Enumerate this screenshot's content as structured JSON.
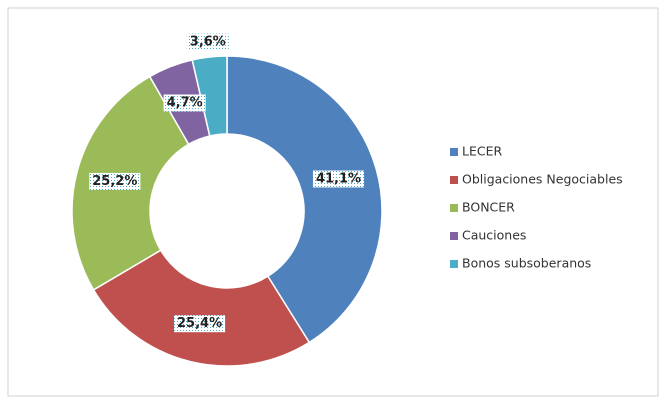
{
  "chart_data": {
    "type": "donut",
    "categories": [
      "LECER",
      "Obligaciones Negociables",
      "BONCER",
      "Cauciones",
      "Bonos subsoberanos"
    ],
    "values": [
      41.1,
      25.4,
      25.2,
      4.7,
      3.6
    ],
    "value_labels": [
      "41,1%",
      "25,4%",
      "25,2%",
      "4,7%",
      "3,6%"
    ],
    "colors": [
      "#4f81bd",
      "#c0504d",
      "#9bbb59",
      "#8064a2",
      "#4bacc6"
    ],
    "legend": "right"
  }
}
